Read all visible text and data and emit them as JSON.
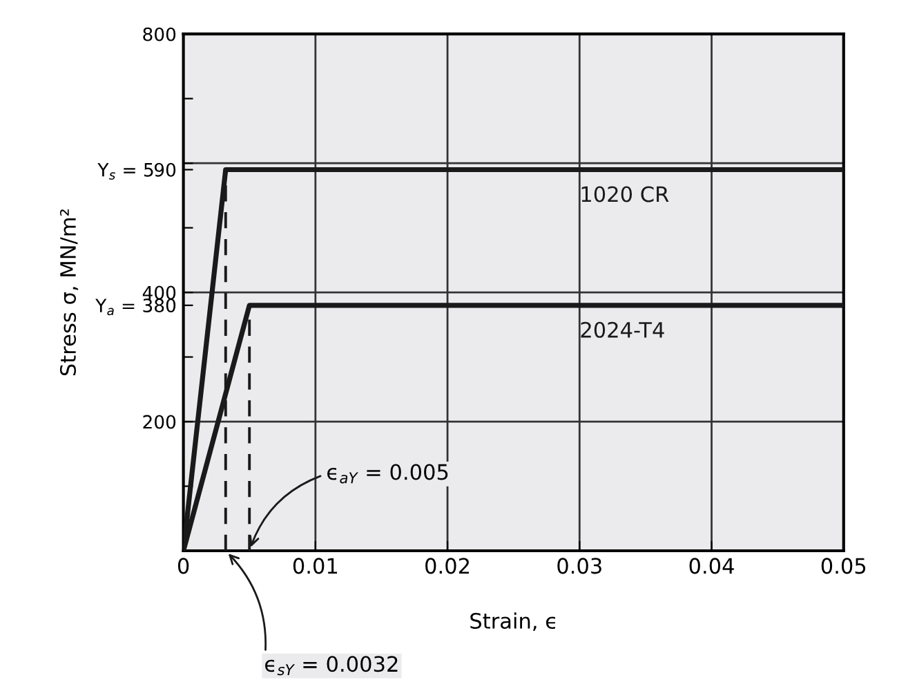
{
  "chart_data": {
    "type": "line",
    "xlabel": "Strain, ϵ",
    "ylabel": "Stress σ, MN/m²",
    "xlim": [
      0,
      0.05
    ],
    "xticks": [
      0,
      0.01,
      0.02,
      0.03,
      0.04,
      0.05
    ],
    "ylim": [
      0,
      800
    ],
    "yticks": [
      {
        "value": 0,
        "label": null
      },
      {
        "value": 100,
        "label": null
      },
      200,
      {
        "value": 300,
        "label": null
      },
      {
        "value": 380,
        "label": "Y$_{a}$ = 380"
      },
      400,
      {
        "value": 500,
        "label": null
      },
      {
        "value": 590,
        "label": "Y$_{s}$ = 590"
      },
      {
        "value": 600,
        "label": null
      },
      {
        "value": 700,
        "label": null
      },
      800
    ],
    "grid": false,
    "legend": false,
    "marker": "none",
    "series": [
      {
        "name": "1020 CR",
        "color": "#1a1a1a",
        "x": [
          0,
          0.0032,
          0.05
        ],
        "values": [
          0,
          590,
          590
        ]
      },
      {
        "name": "2024-T4",
        "color": "#1a1a1a",
        "x": [
          0,
          0.005,
          0.05
        ],
        "values": [
          0,
          380,
          380
        ]
      },
      {
        "color": "#1a1a1a",
        "line_style": "dashed",
        "x": [
          0.0032,
          0.0032
        ],
        "values": [
          0,
          590
        ]
      },
      {
        "color": "#1a1a1a",
        "line_style": "dashed",
        "x": [
          0.005,
          0.005
        ],
        "values": [
          0,
          380
        ]
      }
    ],
    "ref_lines": [
      {
        "axis": "x",
        "value": 0.01
      },
      {
        "axis": "x",
        "value": 0.02
      },
      {
        "axis": "x",
        "value": 0.03
      },
      {
        "axis": "x",
        "value": 0.04
      },
      {
        "axis": "y",
        "value": 200
      },
      {
        "axis": "y",
        "value": 400
      },
      {
        "axis": "y",
        "value": 600
      }
    ],
    "annotations": [
      {
        "text": "ϵ$_{aY}$ = 0.005",
        "x": 0.005,
        "y": 0
      },
      {
        "text": "ϵ$_{sY}$ = 0.0032",
        "x": 0.0032,
        "y": 0
      }
    ]
  }
}
